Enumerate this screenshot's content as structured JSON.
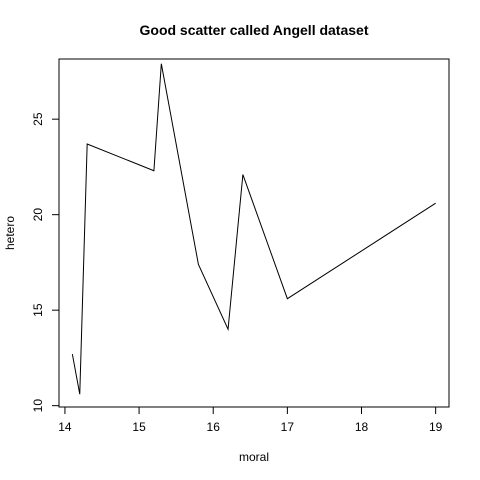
{
  "chart_data": {
    "type": "line",
    "title": "Good scatter called Angell dataset",
    "xlabel": "moral",
    "ylabel": "hetero",
    "xlim": [
      13.92,
      19.18
    ],
    "ylim": [
      9.93,
      28.15
    ],
    "xticks": [
      14,
      15,
      16,
      17,
      18,
      19
    ],
    "yticks": [
      10,
      15,
      20,
      25
    ],
    "grid": false,
    "legend": "none",
    "line_color": "#000000",
    "x": [
      14.1,
      14.2,
      14.3,
      15.2,
      15.3,
      15.8,
      16.2,
      16.4,
      17.0,
      19.0
    ],
    "y": [
      12.7,
      10.6,
      23.7,
      22.3,
      27.9,
      17.4,
      14.0,
      22.1,
      15.6,
      20.6
    ]
  }
}
